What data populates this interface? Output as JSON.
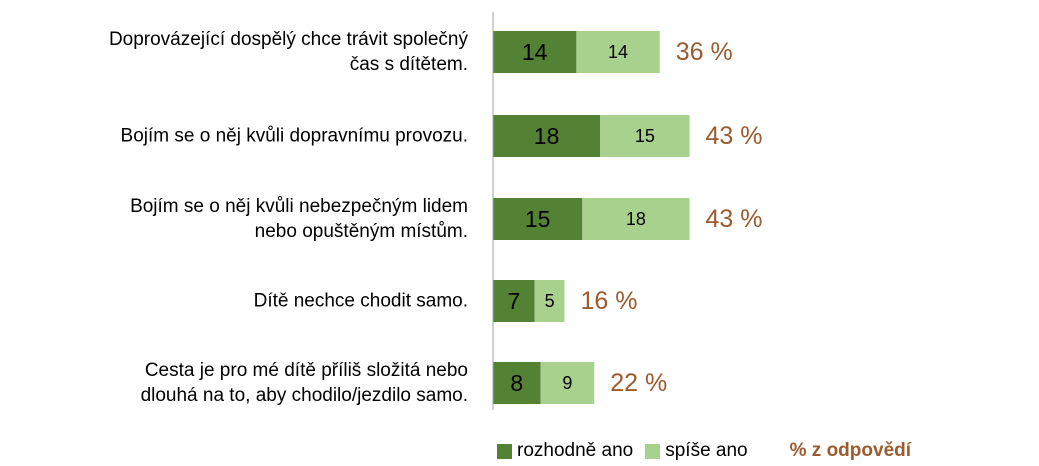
{
  "chart_data": {
    "type": "stacked-barh",
    "categories": [
      "Doprovázející dospělý chce trávit společný\nčas s dítětem.",
      "Bojím se o něj kvůli dopravnímu provozu.",
      "Bojím se o něj kvůli nebezpečným lidem\nnebo opuštěným místům.",
      "Dítě nechce chodit samo.",
      "Cesta je pro mé dítě příliš složitá nebo\ndlouhá na to, aby chodilo/jezdilo samo."
    ],
    "series": [
      {
        "name": "rozhodně ano",
        "color": "#548235",
        "values": [
          14,
          18,
          15,
          7,
          8
        ]
      },
      {
        "name": "spíše ano",
        "color": "#a9d18e",
        "values": [
          14,
          15,
          18,
          5,
          9
        ]
      }
    ],
    "totals": {
      "name": "% z odpovědí",
      "color": "#9c5b2e",
      "values": [
        36,
        43,
        43,
        16,
        22
      ],
      "value_labels": [
        "36 %",
        "43 %",
        "43 %",
        "16 %",
        "22 %"
      ]
    },
    "xlim": [
      0,
      90
    ]
  }
}
